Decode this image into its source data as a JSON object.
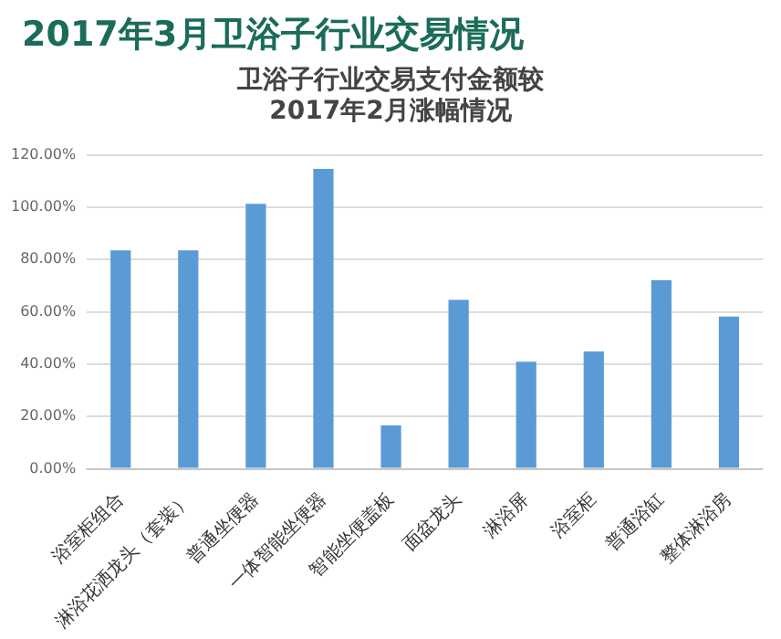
{
  "chart_data": {
    "type": "bar",
    "title": "2017年3月卫浴子行业交易情况",
    "subtitle": "卫浴子行业交易支付金额较2017年2月涨幅情况",
    "categories": [
      "浴室柜组合",
      "淋浴花洒龙头（套装）",
      "普通坐便器",
      "一体智能坐便器",
      "智能坐便盖板",
      "面盆龙头",
      "淋浴屏",
      "浴室柜",
      "普通浴缸",
      "整体淋浴房"
    ],
    "values": [
      83.5,
      83.5,
      101.3,
      114.6,
      16.6,
      64.6,
      40.9,
      44.9,
      72.1,
      58.2
    ],
    "color": "#5b9bd5",
    "ylim": [
      0,
      120
    ],
    "yticks": [
      {
        "value": 0,
        "label": "0.00%"
      },
      {
        "value": 20,
        "label": "20.00%"
      },
      {
        "value": 40,
        "label": "40.00%"
      },
      {
        "value": 60,
        "label": "60.00%"
      },
      {
        "value": 80,
        "label": "80.00%"
      },
      {
        "value": 100,
        "label": "100.00%"
      },
      {
        "value": 120,
        "label": "120.00%"
      }
    ],
    "grid": "y",
    "legend": false
  }
}
